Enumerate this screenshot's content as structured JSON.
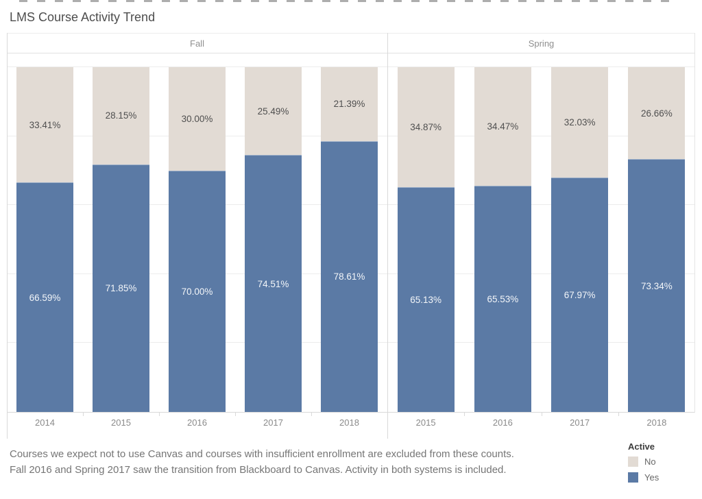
{
  "title": "LMS Course Activity Trend",
  "chart_data": {
    "type": "bar",
    "subtype": "100%-stacked-columns",
    "ylim": [
      0,
      100
    ],
    "grid_interval_pct": 20,
    "panels": [
      {
        "label": "Fall",
        "categories": [
          "2014",
          "2015",
          "2016",
          "2017",
          "2018"
        ],
        "series": [
          {
            "name": "Yes",
            "color": "#5b7aa5",
            "values": [
              66.59,
              71.85,
              70.0,
              74.51,
              78.61
            ]
          },
          {
            "name": "No",
            "color": "#e2dbd4",
            "values": [
              33.41,
              28.15,
              30.0,
              25.49,
              21.39
            ]
          }
        ]
      },
      {
        "label": "Spring",
        "categories": [
          "2015",
          "2016",
          "2017",
          "2018"
        ],
        "series": [
          {
            "name": "Yes",
            "color": "#5b7aa5",
            "values": [
              65.13,
              65.53,
              67.97,
              73.34
            ]
          },
          {
            "name": "No",
            "color": "#e2dbd4",
            "values": [
              34.87,
              34.47,
              32.03,
              26.66
            ]
          }
        ]
      }
    ],
    "legend": {
      "title": "Active",
      "position": "bottom-right",
      "entries": [
        {
          "label": "No",
          "color": "#e2dbd4"
        },
        {
          "label": "Yes",
          "color": "#5b7aa5"
        }
      ]
    }
  },
  "caption": {
    "line1": "Courses we expect not to use Canvas and courses with insufficient enrollment are excluded from these counts.",
    "line2": "Fall 2016 and Spring 2017 saw the transition from Blackboard to Canvas. Activity in both systems is included."
  }
}
